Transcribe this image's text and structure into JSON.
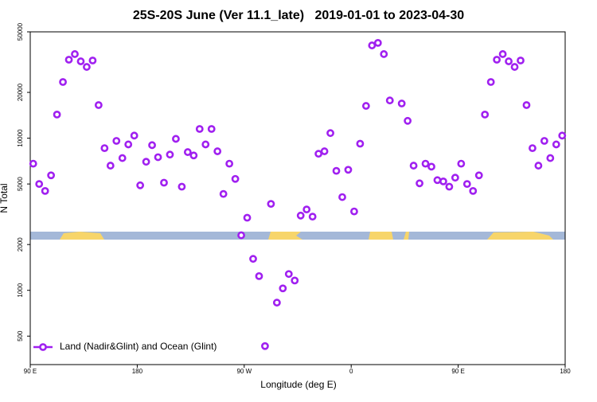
{
  "chart_data": {
    "type": "scatter",
    "title": "25S-20S June (Ver 11.1_late)   2019-01-01 to 2023-04-30",
    "xlabel": "Longitude (deg E)",
    "ylabel": "N Total",
    "xlim": [
      90,
      540
    ],
    "ylim": [
      325,
      50000
    ],
    "log_y": true,
    "legend": "lower left",
    "xticks": [
      {
        "value": 90,
        "label": "90 E"
      },
      180,
      {
        "value": 270,
        "label": "90 W"
      },
      {
        "value": 360,
        "label": "0"
      },
      {
        "value": 450,
        "label": "90 E"
      },
      {
        "value": 540,
        "label": "180"
      }
    ],
    "yticks": [
      500,
      1000,
      2000,
      5000,
      10000,
      20000,
      50000
    ],
    "series": [
      {
        "name": "Land (Nadir&Glint) and Ocean (Glint)",
        "color": "#a020f0",
        "x": [
          92.5,
          97.5,
          102.5,
          107.5,
          112.5,
          117.5,
          122.5,
          127.5,
          132.5,
          137.5,
          142.5,
          147.5,
          152.5,
          157.5,
          162.5,
          167.5,
          172.5,
          177.5,
          182.5,
          187.5,
          192.5,
          197.5,
          202.5,
          207.5,
          212.5,
          217.5,
          222.5,
          227.5,
          232.5,
          237.5,
          242.5,
          247.5,
          252.5,
          257.5,
          262.5,
          267.5,
          272.5,
          277.5,
          282.5,
          287.5,
          292.5,
          297.5,
          302.5,
          307.5,
          312.5,
          317.5,
          322.5,
          327.5,
          332.5,
          337.5,
          342.5,
          347.5,
          352.5,
          357.5,
          362.5,
          367.5,
          372.5,
          377.5,
          382.5,
          387.5,
          392.5,
          402.5,
          407.5,
          412.5,
          417.5,
          422.5,
          427.5,
          432.5,
          437.5,
          442.5,
          447.5,
          452.5,
          457.5,
          462.5,
          467.5,
          472.5,
          477.5,
          482.5,
          487.5,
          492.5,
          497.5,
          502.5,
          507.5,
          512.5,
          517.5,
          522.5,
          527.5,
          532.5,
          537.5
        ],
        "values": [
          6800,
          5000,
          4500,
          5700,
          14300,
          23400,
          32800,
          35700,
          32000,
          29400,
          32400,
          16500,
          8600,
          6600,
          9600,
          7400,
          9100,
          10400,
          4900,
          7000,
          9000,
          7500,
          5100,
          7800,
          9900,
          4800,
          8100,
          7700,
          11500,
          9100,
          11500,
          8200,
          4300,
          6800,
          5400,
          2300,
          3000,
          1610,
          1240,
          430,
          3700,
          830,
          1030,
          1280,
          1160,
          3100,
          3400,
          3050,
          7900,
          8200,
          10800,
          6100,
          4100,
          6200,
          3300,
          9200,
          16300,
          40700,
          42300,
          35700,
          17700,
          16900,
          13000,
          6600,
          5050,
          6800,
          6500,
          5300,
          5200,
          4800,
          5500,
          6800,
          5000,
          4500,
          5700,
          14300,
          23400,
          32800,
          35700,
          32000,
          29400,
          32400,
          16500,
          8600,
          6600,
          9600,
          7400,
          9100,
          10400
        ]
      }
    ]
  }
}
